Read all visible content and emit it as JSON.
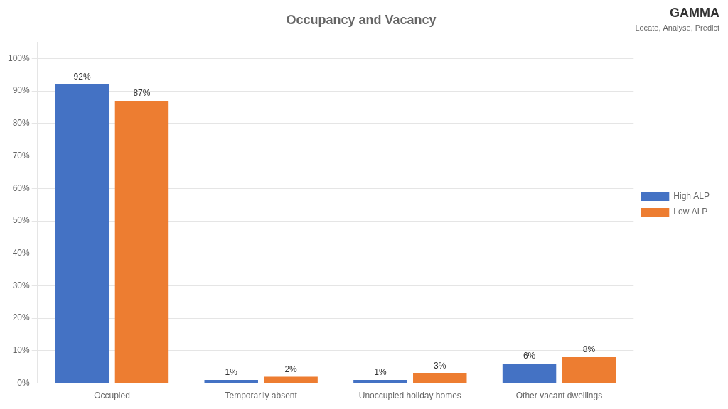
{
  "chart_data": {
    "type": "bar",
    "title": "Occupancy and Vacancy",
    "categories": [
      "Occupied",
      "Temporarily absent",
      "Unoccupied holiday homes",
      "Other vacant dwellings"
    ],
    "series": [
      {
        "name": "High ALP",
        "color": "#4472C4",
        "values": [
          92,
          1,
          1,
          6
        ],
        "value_labels": [
          "92%",
          "1%",
          "1%",
          "6%"
        ]
      },
      {
        "name": "Low ALP",
        "color": "#ED7D31",
        "values": [
          87,
          2,
          3,
          8
        ],
        "value_labels": [
          "87%",
          "2%",
          "3%",
          "8%"
        ]
      }
    ],
    "ylim": [
      0,
      105
    ],
    "yticks": [
      {
        "value": 0,
        "label": "0%"
      },
      {
        "value": 10,
        "label": "10%"
      },
      {
        "value": 20,
        "label": "20%"
      },
      {
        "value": 30,
        "label": "30%"
      },
      {
        "value": 40,
        "label": "40%"
      },
      {
        "value": 50,
        "label": "50%"
      },
      {
        "value": 60,
        "label": "60%"
      },
      {
        "value": 70,
        "label": "70%"
      },
      {
        "value": 80,
        "label": "80%"
      },
      {
        "value": 90,
        "label": "90%"
      },
      {
        "value": 100,
        "label": "100%"
      }
    ],
    "grid": true,
    "legend": "right",
    "data_labels": true,
    "annotations": [
      "GAMMA",
      "Locate, Analyse, Predict"
    ]
  }
}
